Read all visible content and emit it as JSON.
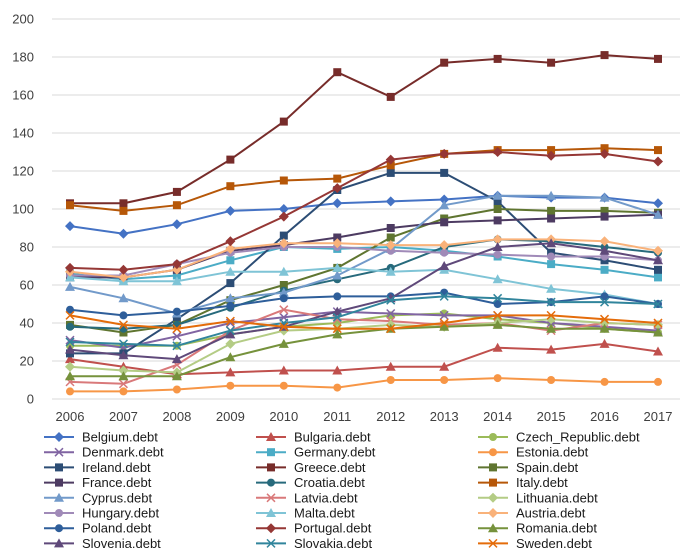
{
  "chart_data": {
    "type": "line",
    "title": "",
    "xlabel": "",
    "ylabel": "",
    "x": [
      "2006",
      "2007",
      "2008",
      "2009",
      "2010",
      "2011",
      "2012",
      "2013",
      "2014",
      "2015",
      "2016",
      "2017"
    ],
    "ylim": [
      0,
      200
    ],
    "yticks": [
      0,
      20,
      40,
      60,
      80,
      100,
      120,
      140,
      160,
      180,
      200
    ],
    "grid": "horizontal",
    "legend_position": "bottom",
    "series": [
      {
        "name": "Belgium.debt",
        "color": "#4472c4",
        "marker": "diamond",
        "values": [
          91,
          87,
          92,
          99,
          100,
          103,
          104,
          105,
          107,
          106,
          106,
          103
        ]
      },
      {
        "name": "Bulgaria.debt",
        "color": "#c0504d",
        "marker": "triangle",
        "values": [
          21,
          17,
          13,
          14,
          15,
          15,
          17,
          17,
          27,
          26,
          29,
          25
        ]
      },
      {
        "name": "Czech_Republic.debt",
        "color": "#9bbb59",
        "marker": "circle",
        "values": [
          28,
          28,
          28,
          34,
          38,
          40,
          44,
          45,
          42,
          40,
          37,
          35
        ]
      },
      {
        "name": "Denmark.debt",
        "color": "#8064a2",
        "marker": "x",
        "values": [
          31,
          27,
          33,
          40,
          43,
          46,
          45,
          44,
          44,
          40,
          38,
          36
        ]
      },
      {
        "name": "Germany.debt",
        "color": "#4bacc6",
        "marker": "square",
        "values": [
          66,
          63,
          65,
          73,
          80,
          79,
          80,
          78,
          75,
          71,
          68,
          64
        ]
      },
      {
        "name": "Estonia.debt",
        "color": "#f79646",
        "marker": "circle",
        "values": [
          4,
          4,
          5,
          7,
          7,
          6,
          10,
          10,
          11,
          10,
          9,
          9
        ]
      },
      {
        "name": "Ireland.debt",
        "color": "#2c4d75",
        "marker": "square",
        "values": [
          24,
          24,
          42,
          61,
          86,
          110,
          119,
          119,
          104,
          77,
          73,
          68
        ]
      },
      {
        "name": "Greece.debt",
        "color": "#772c2a",
        "marker": "square",
        "values": [
          103,
          103,
          109,
          126,
          146,
          172,
          159,
          177,
          179,
          177,
          181,
          179
        ]
      },
      {
        "name": "Spain.debt",
        "color": "#5f7530",
        "marker": "square",
        "values": [
          39,
          35,
          39,
          52,
          60,
          69,
          85,
          95,
          100,
          99,
          99,
          98
        ]
      },
      {
        "name": "France.debt",
        "color": "#4d3b62",
        "marker": "square",
        "values": [
          64,
          64,
          68,
          78,
          81,
          85,
          90,
          93,
          94,
          95,
          96,
          97
        ]
      },
      {
        "name": "Croatia.debt",
        "color": "#276a7c",
        "marker": "circle",
        "values": [
          38,
          37,
          39,
          48,
          57,
          63,
          69,
          80,
          84,
          83,
          80,
          77
        ]
      },
      {
        "name": "Italy.debt",
        "color": "#b65708",
        "marker": "square",
        "values": [
          102,
          99,
          102,
          112,
          115,
          116,
          123,
          129,
          131,
          131,
          132,
          131
        ]
      },
      {
        "name": "Cyprus.debt",
        "color": "#729aca",
        "marker": "triangle",
        "values": [
          59,
          53,
          45,
          53,
          56,
          65,
          79,
          102,
          107,
          107,
          106,
          97
        ]
      },
      {
        "name": "Latvia.debt",
        "color": "#d9797a",
        "marker": "x",
        "values": [
          9,
          8,
          18,
          36,
          47,
          42,
          41,
          39,
          40,
          36,
          40,
          39
        ]
      },
      {
        "name": "Lithuania.debt",
        "color": "#b4cc85",
        "marker": "diamond",
        "values": [
          17,
          15,
          14,
          29,
          36,
          37,
          39,
          38,
          40,
          42,
          40,
          39
        ]
      },
      {
        "name": "Hungary.debt",
        "color": "#a08ab8",
        "marker": "circle",
        "values": [
          65,
          65,
          71,
          77,
          80,
          80,
          78,
          77,
          76,
          75,
          75,
          73
        ]
      },
      {
        "name": "Malta.debt",
        "color": "#7fc4d6",
        "marker": "triangle",
        "values": [
          64,
          62,
          62,
          67,
          67,
          69,
          67,
          68,
          63,
          58,
          55,
          50
        ]
      },
      {
        "name": "Austria.debt",
        "color": "#f9b27a",
        "marker": "diamond",
        "values": [
          67,
          64,
          68,
          79,
          82,
          82,
          81,
          81,
          84,
          84,
          83,
          78
        ]
      },
      {
        "name": "Poland.debt",
        "color": "#2e5e9a",
        "marker": "circle",
        "values": [
          47,
          44,
          46,
          49,
          53,
          54,
          54,
          56,
          50,
          51,
          54,
          50
        ]
      },
      {
        "name": "Portugal.debt",
        "color": "#953735",
        "marker": "diamond",
        "values": [
          69,
          68,
          71,
          83,
          96,
          111,
          126,
          129,
          130,
          128,
          129,
          125
        ]
      },
      {
        "name": "Romania.debt",
        "color": "#76923c",
        "marker": "triangle",
        "values": [
          12,
          12,
          12,
          22,
          29,
          34,
          37,
          38,
          39,
          37,
          37,
          35
        ]
      },
      {
        "name": "Slovenia.debt",
        "color": "#5f497a",
        "marker": "triangle",
        "values": [
          26,
          23,
          21,
          34,
          38,
          46,
          53,
          70,
          80,
          82,
          78,
          73
        ]
      },
      {
        "name": "Slovakia.debt",
        "color": "#31859c",
        "marker": "x",
        "values": [
          30,
          29,
          28,
          36,
          40,
          43,
          52,
          54,
          53,
          51,
          51,
          50
        ]
      },
      {
        "name": "Sweden.debt",
        "color": "#e46c0a",
        "marker": "x",
        "values": [
          44,
          39,
          37,
          41,
          38,
          37,
          37,
          40,
          44,
          44,
          42,
          40
        ]
      }
    ]
  }
}
